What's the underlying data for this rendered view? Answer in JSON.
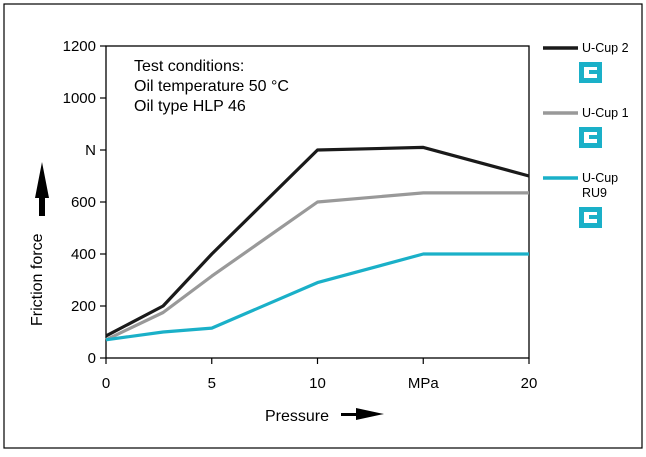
{
  "chart_data": {
    "type": "line",
    "xlabel": "Pressure",
    "ylabel": "Friction force",
    "xlim": [
      0,
      20
    ],
    "ylim": [
      0,
      1200
    ],
    "x_ticks": [
      {
        "value": 0,
        "label": "0"
      },
      {
        "value": 5,
        "label": "5"
      },
      {
        "value": 10,
        "label": "10"
      },
      {
        "value": 15,
        "label": "MPa"
      },
      {
        "value": 20,
        "label": "20"
      }
    ],
    "y_ticks": [
      {
        "value": 0,
        "label": "0"
      },
      {
        "value": 200,
        "label": "200"
      },
      {
        "value": 400,
        "label": "400"
      },
      {
        "value": 600,
        "label": "600"
      },
      {
        "value": 800,
        "label": "N"
      },
      {
        "value": 1000,
        "label": "1000"
      },
      {
        "value": 1200,
        "label": "1200"
      }
    ],
    "grid": false,
    "legend_position": "right",
    "annotation": [
      "Test conditions:",
      "Oil temperature 50 °C",
      "Oil type HLP 46"
    ],
    "series": [
      {
        "name": "U-Cup 2",
        "color": "#1a1a1a",
        "icon": "u-cup-seal-icon",
        "x": [
          0,
          2.7,
          5,
          10,
          15,
          20
        ],
        "y": [
          85,
          200,
          400,
          800,
          810,
          700
        ]
      },
      {
        "name": "U-Cup 1",
        "color": "#999999",
        "icon": "u-cup-seal-icon",
        "x": [
          0,
          2.7,
          5,
          10,
          15,
          20
        ],
        "y": [
          70,
          175,
          315,
          600,
          635,
          635
        ]
      },
      {
        "name": "U-Cup RU9",
        "color": "#1ab0c8",
        "icon": "u-cup-seal-icon",
        "x": [
          0,
          2.7,
          5,
          10,
          15,
          20
        ],
        "y": [
          70,
          100,
          115,
          290,
          400,
          400
        ]
      }
    ]
  }
}
